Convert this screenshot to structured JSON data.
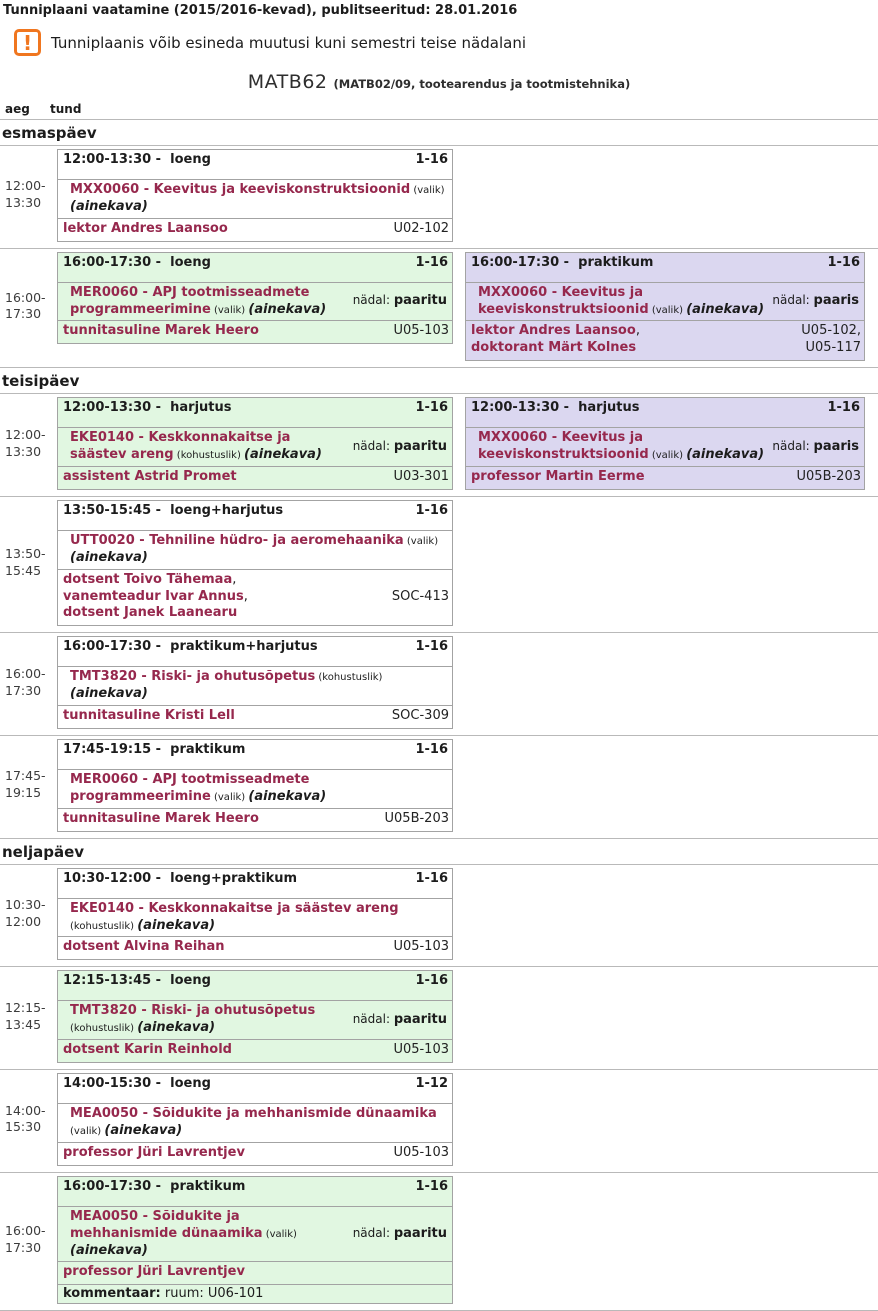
{
  "header": {
    "title": "Tunniplaani vaatamine (2015/2016-kevad), publitseeritud: 28.01.2016",
    "warning_icon": "!",
    "warning": "Tunniplaanis võib esineda muutusi kuni semestri teise nädalani",
    "group_code": "MATB62",
    "group_info": "(MATB02/09, tootearendus ja tootmistehnika)",
    "col_time": "aeg",
    "col_lesson": "tund"
  },
  "labels": {
    "type_separator": " -  ",
    "week_parity_label": "nädal:",
    "comment_label": "kommentaar:"
  },
  "colors": {
    "accent_maroon": "#96284d",
    "warning_orange": "#f0761f",
    "card_green": "#e1f7e1",
    "card_purple": "#dbd7f0"
  },
  "days": [
    {
      "name": "esmaspäev",
      "rows": [
        {
          "time": [
            "12:00-",
            "13:30"
          ],
          "cards": [
            {
              "variant": "white",
              "time_range": "12:00-13:30",
              "lesson_type": "loeng",
              "weeks": "1-16",
              "subject": "MXX0060 - Keevitus ja keeviskonstruktsioonid",
              "requirement": "(valik)",
              "ainekava": "(ainekava)",
              "lecturers": [
                "lektor Andres Laansoo"
              ],
              "rooms": "U02-102"
            }
          ]
        },
        {
          "time": [
            "16:00-",
            "17:30"
          ],
          "cards": [
            {
              "variant": "green",
              "time_range": "16:00-17:30",
              "lesson_type": "loeng",
              "weeks": "1-16",
              "subject": "MER0060 - APJ tootmisseadmete programmeerimine",
              "requirement": "(valik)",
              "ainekava": "(ainekava)",
              "week_parity": "paaritu",
              "lecturers": [
                "tunnitasuline Marek Heero"
              ],
              "rooms": "U05-103"
            },
            {
              "variant": "purple",
              "time_range": "16:00-17:30",
              "lesson_type": "praktikum",
              "weeks": "1-16",
              "subject": "MXX0060 - Keevitus ja keeviskonstruktsioonid",
              "requirement": "(valik)",
              "ainekava": "(ainekava)",
              "week_parity": "paaris",
              "lecturers": [
                "lektor Andres Laansoo",
                "doktorant Märt Kolnes"
              ],
              "rooms": "U05-102, U05-117"
            }
          ]
        }
      ]
    },
    {
      "name": "teisipäev",
      "rows": [
        {
          "time": [
            "12:00-",
            "13:30"
          ],
          "cards": [
            {
              "variant": "green",
              "time_range": "12:00-13:30",
              "lesson_type": "harjutus",
              "weeks": "1-16",
              "subject": "EKE0140 - Keskkonnakaitse ja säästev areng",
              "requirement": "(kohustuslik)",
              "ainekava": "(ainekava)",
              "week_parity": "paaritu",
              "lecturers": [
                "assistent Astrid Promet"
              ],
              "rooms": "U03-301"
            },
            {
              "variant": "purple",
              "time_range": "12:00-13:30",
              "lesson_type": "harjutus",
              "weeks": "1-16",
              "subject": "MXX0060 - Keevitus ja keeviskonstruktsioonid",
              "requirement": "(valik)",
              "ainekava": "(ainekava)",
              "week_parity": "paaris",
              "lecturers": [
                "professor Martin Eerme"
              ],
              "rooms": "U05B-203"
            }
          ]
        },
        {
          "time": [
            "13:50-",
            "15:45"
          ],
          "cards": [
            {
              "variant": "white",
              "time_range": "13:50-15:45",
              "lesson_type": "loeng+harjutus",
              "weeks": "1-16",
              "subject": "UTT0020 - Tehniline hüdro- ja aeromehaanika",
              "requirement": "(valik)",
              "ainekava": "(ainekava)",
              "lecturers": [
                "dotsent Toivo Tähemaa",
                "vanemteadur Ivar Annus",
                "dotsent Janek Laanearu"
              ],
              "rooms": "SOC-413"
            }
          ]
        },
        {
          "time": [
            "16:00-",
            "17:30"
          ],
          "cards": [
            {
              "variant": "white",
              "time_range": "16:00-17:30",
              "lesson_type": "praktikum+harjutus",
              "weeks": "1-16",
              "subject": "TMT3820 - Riski- ja ohutusõpetus",
              "requirement": "(kohustuslik)",
              "ainekava": "(ainekava)",
              "lecturers": [
                "tunnitasuline Kristi Lell"
              ],
              "rooms": "SOC-309"
            }
          ]
        },
        {
          "time": [
            "17:45-",
            "19:15"
          ],
          "cards": [
            {
              "variant": "white",
              "time_range": "17:45-19:15",
              "lesson_type": "praktikum",
              "weeks": "1-16",
              "subject": "MER0060 - APJ tootmisseadmete programmeerimine",
              "requirement": "(valik)",
              "ainekava": "(ainekava)",
              "lecturers": [
                "tunnitasuline Marek Heero"
              ],
              "rooms": "U05B-203"
            }
          ]
        }
      ]
    },
    {
      "name": "neljapäev",
      "rows": [
        {
          "time": [
            "10:30-",
            "12:00"
          ],
          "cards": [
            {
              "variant": "white",
              "time_range": "10:30-12:00",
              "lesson_type": "loeng+praktikum",
              "weeks": "1-16",
              "subject": "EKE0140 - Keskkonnakaitse ja säästev areng",
              "requirement": "(kohustuslik)",
              "ainekava": "(ainekava)",
              "lecturers": [
                "dotsent Alvina Reihan"
              ],
              "rooms": "U05-103"
            }
          ]
        },
        {
          "time": [
            "12:15-",
            "13:45"
          ],
          "cards": [
            {
              "variant": "green",
              "time_range": "12:15-13:45",
              "lesson_type": "loeng",
              "weeks": "1-16",
              "subject": "TMT3820 - Riski- ja ohutusõpetus",
              "requirement": "(kohustuslik)",
              "ainekava": "(ainekava)",
              "week_parity": "paaritu",
              "lecturers": [
                "dotsent Karin Reinhold"
              ],
              "rooms": "U05-103"
            }
          ]
        },
        {
          "time": [
            "14:00-",
            "15:30"
          ],
          "cards": [
            {
              "variant": "white",
              "time_range": "14:00-15:30",
              "lesson_type": "loeng",
              "weeks": "1-12",
              "subject": "MEA0050 - Sõidukite ja mehhanismide dünaamika",
              "requirement": "(valik)",
              "ainekava": "(ainekava)",
              "lecturers": [
                "professor Jüri Lavrentjev"
              ],
              "rooms": "U05-103"
            }
          ]
        },
        {
          "time": [
            "16:00-",
            "17:30"
          ],
          "cards": [
            {
              "variant": "green",
              "time_range": "16:00-17:30",
              "lesson_type": "praktikum",
              "weeks": "1-16",
              "subject": "MEA0050 - Sõidukite ja mehhanismide dünaamika",
              "requirement": "(valik)",
              "ainekava": "(ainekava)",
              "week_parity": "paaritu",
              "lecturers": [
                "professor Jüri Lavrentjev"
              ],
              "rooms": "",
              "comment": "ruum: U06-101"
            }
          ]
        }
      ]
    }
  ]
}
